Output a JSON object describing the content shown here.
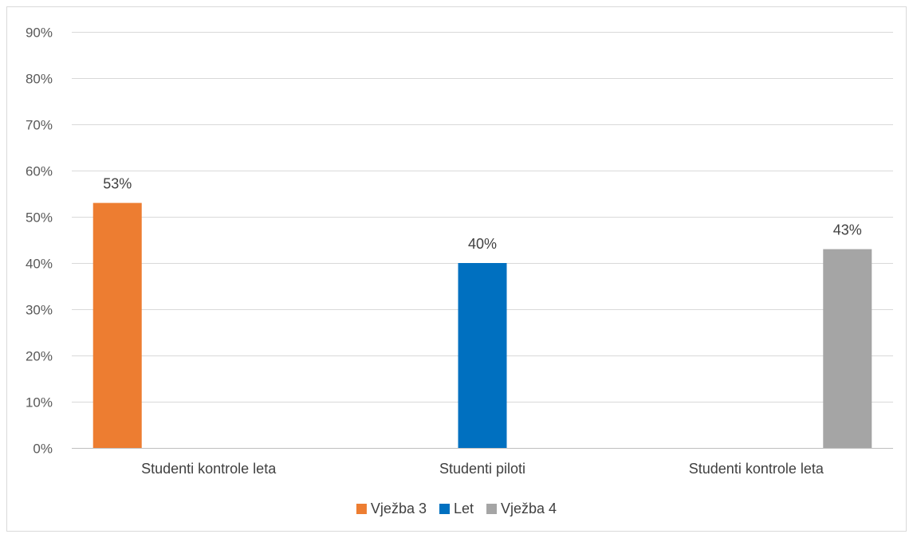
{
  "chart_data": {
    "type": "bar",
    "categories": [
      "Studenti kontrole leta",
      "Studenti piloti",
      "Studenti kontrole leta"
    ],
    "series": [
      {
        "name": "Vježba 3",
        "values": [
          53,
          null,
          null
        ],
        "color": "#ED7D31"
      },
      {
        "name": "Let",
        "values": [
          null,
          40,
          null
        ],
        "color": "#0070C0"
      },
      {
        "name": "Vježba 4",
        "values": [
          null,
          null,
          43
        ],
        "color": "#A5A5A5"
      }
    ],
    "data_labels": [
      "53%",
      "40%",
      "43%"
    ],
    "ylim": [
      0,
      90
    ],
    "yticks": [
      0,
      10,
      20,
      30,
      40,
      50,
      60,
      70,
      80,
      90
    ],
    "ytick_labels": [
      "0%",
      "10%",
      "20%",
      "30%",
      "40%",
      "50%",
      "60%",
      "70%",
      "80%",
      "90%"
    ],
    "grid": true,
    "legend_position": "bottom",
    "title": "",
    "xlabel": "",
    "ylabel": ""
  }
}
